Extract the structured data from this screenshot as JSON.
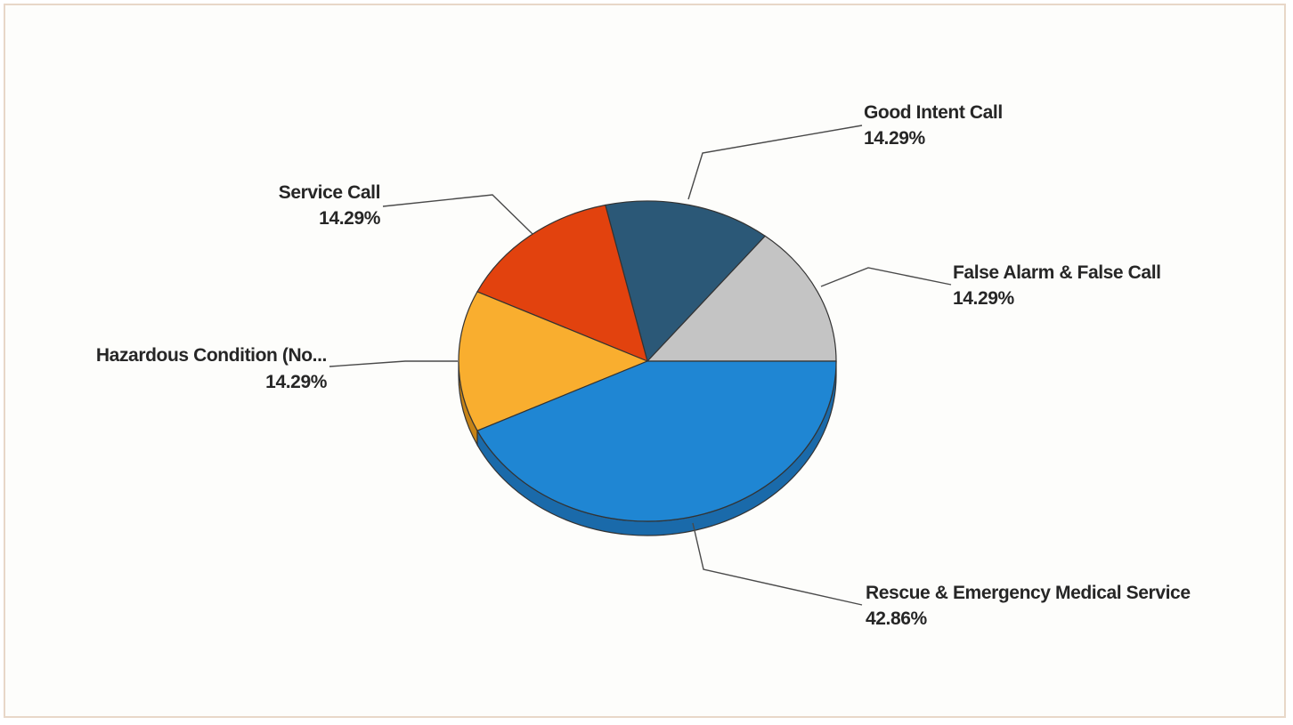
{
  "chart_data": {
    "type": "pie",
    "title": "",
    "slices": [
      {
        "label": "False Alarm & False Call",
        "percent_label": "14.29%",
        "value": 14.29,
        "color": "#c4c4c4",
        "side_color": "#9a9a9a"
      },
      {
        "label": "Good Intent Call",
        "percent_label": "14.29%",
        "value": 14.29,
        "color": "#2b5877",
        "side_color": "#1d3d54"
      },
      {
        "label": "Service Call",
        "percent_label": "14.29%",
        "value": 14.29,
        "color": "#e2420e",
        "side_color": "#a72f08"
      },
      {
        "label": "Hazardous Condition (No...",
        "percent_label": "14.29%",
        "value": 14.29,
        "color": "#f9ae2f",
        "side_color": "#c68317"
      },
      {
        "label": "Rescue & Emergency Medical Service",
        "percent_label": "42.86%",
        "value": 42.86,
        "color": "#1f86d3",
        "side_color": "#1a6aaa"
      }
    ],
    "legend": "none"
  }
}
